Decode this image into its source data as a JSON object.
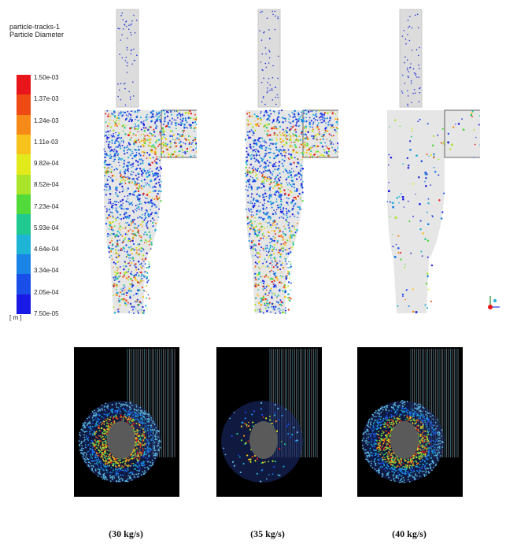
{
  "legend": {
    "title_line1": "particle-tracks-1",
    "title_line2": "Particle Diameter",
    "unit": "[ m ]",
    "ticks": [
      "1.50e-03",
      "1.37e-03",
      "1.24e-03",
      "1.11e-03",
      "9.82e-04",
      "8.52e-04",
      "7.23e-04",
      "5.93e-04",
      "4.64e-04",
      "3.34e-04",
      "2.05e-04",
      "7.50e-05"
    ],
    "colors": [
      "#e8161a",
      "#f04a14",
      "#f58a18",
      "#f8c21c",
      "#e2ea1c",
      "#a9e42a",
      "#52d93a",
      "#20c98f",
      "#1eb4d6",
      "#1a84e6",
      "#1a4ee8",
      "#1a1ae6"
    ]
  },
  "captions": [
    "(30 kg/s)",
    "(35 kg/s)",
    "(40 kg/s)"
  ],
  "colors": {
    "cyclone_body": "#d8d8d8",
    "particle_blue": "#2a3cd8",
    "top_view_background": "#000000",
    "top_view_core": "#5a5a5a"
  }
}
